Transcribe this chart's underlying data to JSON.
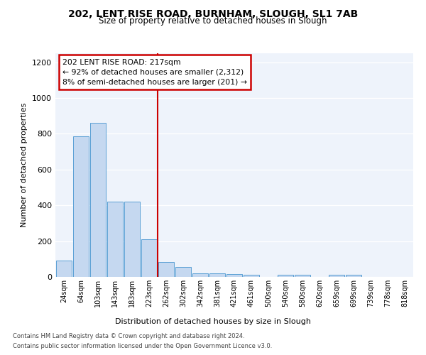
{
  "title1": "202, LENT RISE ROAD, BURNHAM, SLOUGH, SL1 7AB",
  "title2": "Size of property relative to detached houses in Slough",
  "xlabel": "Distribution of detached houses by size in Slough",
  "ylabel": "Number of detached properties",
  "footnote1": "Contains HM Land Registry data © Crown copyright and database right 2024.",
  "footnote2": "Contains public sector information licensed under the Open Government Licence v3.0.",
  "annotation_line1": "202 LENT RISE ROAD: 217sqm",
  "annotation_line2": "← 92% of detached houses are smaller (2,312)",
  "annotation_line3": "8% of semi-detached houses are larger (201) →",
  "bar_labels": [
    "24sqm",
    "64sqm",
    "103sqm",
    "143sqm",
    "183sqm",
    "223sqm",
    "262sqm",
    "302sqm",
    "342sqm",
    "381sqm",
    "421sqm",
    "461sqm",
    "500sqm",
    "540sqm",
    "580sqm",
    "620sqm",
    "659sqm",
    "699sqm",
    "739sqm",
    "778sqm",
    "818sqm"
  ],
  "bar_values": [
    90,
    785,
    860,
    420,
    420,
    210,
    85,
    55,
    20,
    20,
    15,
    10,
    0,
    10,
    10,
    0,
    10,
    10,
    0,
    0,
    0
  ],
  "bar_color": "#c5d8f0",
  "bar_edge_color": "#5a9fd4",
  "vline_x": 5.5,
  "vline_color": "#cc0000",
  "bg_color": "#eef3fb",
  "annotation_box_color": "#ffffff",
  "annotation_box_edge": "#cc0000",
  "ylim": [
    0,
    1250
  ],
  "yticks": [
    0,
    200,
    400,
    600,
    800,
    1000,
    1200
  ]
}
